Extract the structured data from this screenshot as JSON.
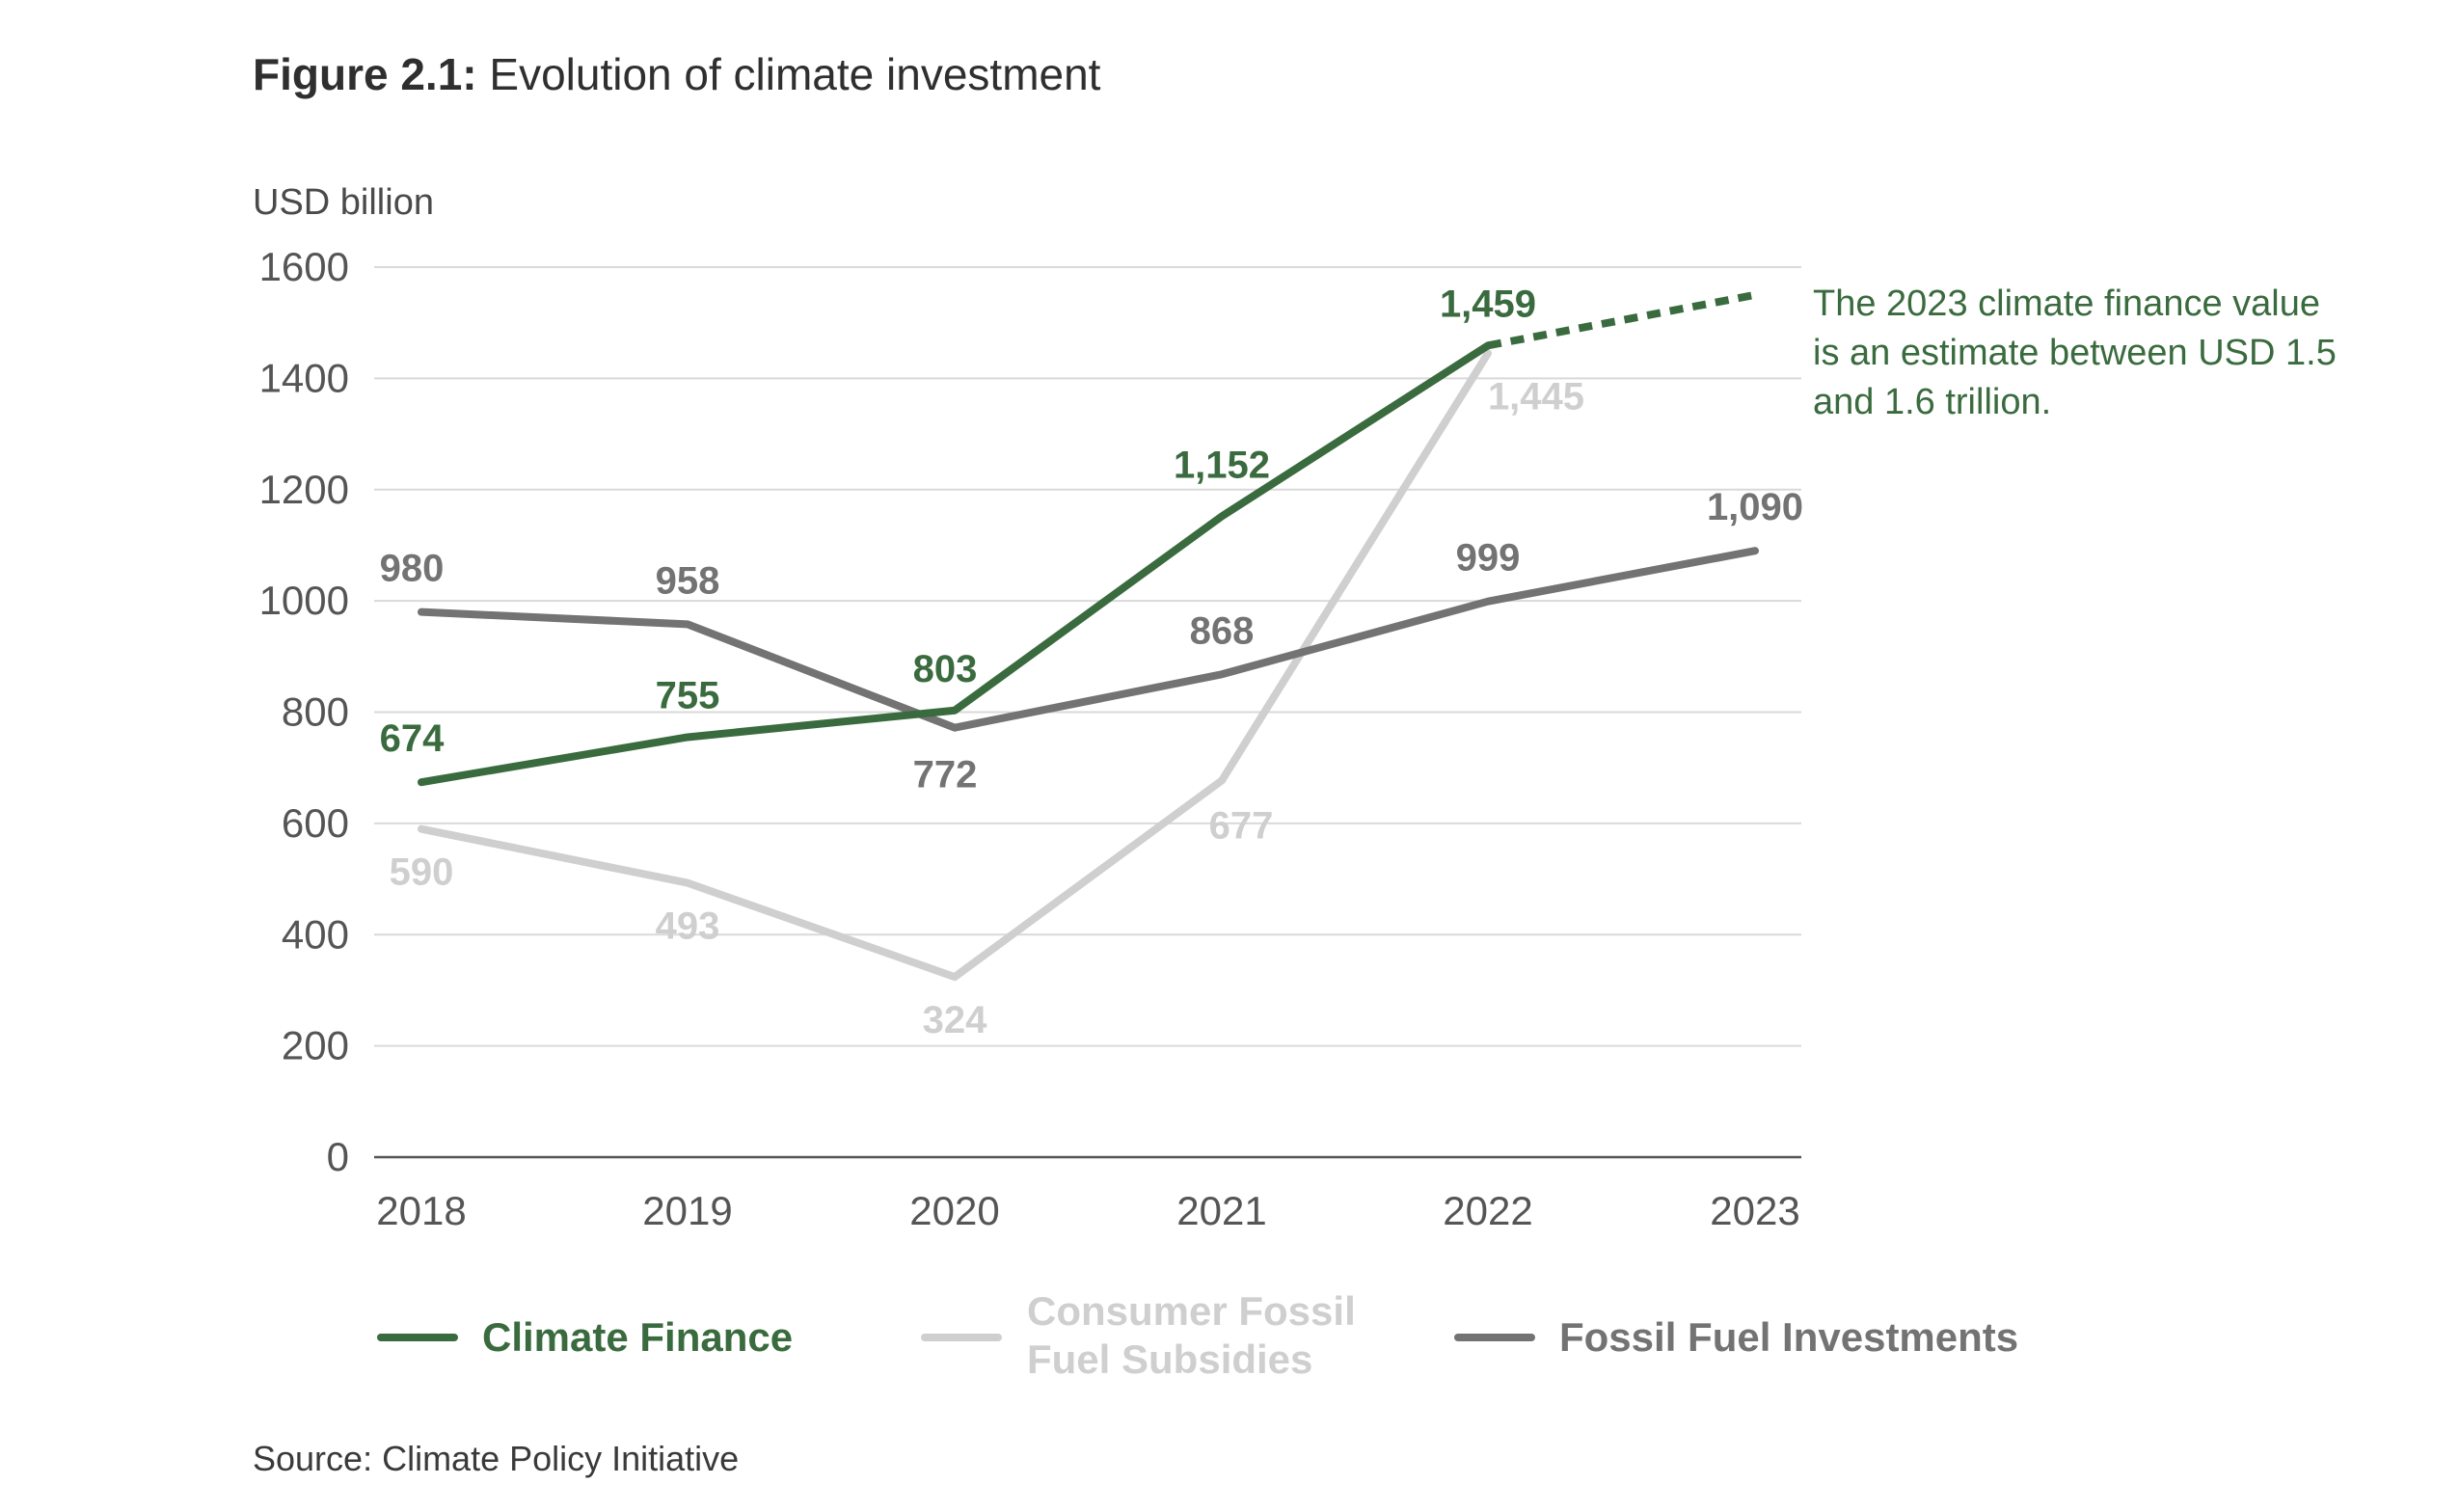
{
  "figure": {
    "label": "Figure 2.1:",
    "title": " Evolution of climate investment",
    "source": "Source: Climate Policy Initiative",
    "annotation": "The 2023 climate finance value is an estimate between USD 1.5 and 1.6 trillion."
  },
  "chart_data": {
    "type": "line",
    "title": "Evolution of climate investment",
    "ylabel": "USD billion",
    "xlabel": "",
    "x": [
      "2018",
      "2019",
      "2020",
      "2021",
      "2022",
      "2023"
    ],
    "ylim": [
      0,
      1600
    ],
    "yticks": [
      0,
      200,
      400,
      600,
      800,
      1000,
      1200,
      1400,
      1600
    ],
    "grid": true,
    "legend_position": "bottom",
    "series": [
      {
        "name": "Climate Finance",
        "color": "#3a6b3e",
        "values": [
          674,
          755,
          803,
          1152,
          1459,
          null
        ],
        "labels": [
          "674",
          "755",
          "803",
          "1,152",
          "1,459",
          ""
        ],
        "estimate": {
          "from": "2022",
          "to": "2023",
          "from_value": 1459,
          "to_value": 1550,
          "style": "dashed"
        }
      },
      {
        "name": "Consumer Fossil Fuel Subsidies",
        "legend_lines": [
          "Consumer Fossil",
          "Fuel Subsidies"
        ],
        "color": "#cfcfcf",
        "values": [
          590,
          493,
          324,
          677,
          1445,
          null
        ],
        "labels": [
          "590",
          "493",
          "324",
          "677",
          "1,445",
          ""
        ]
      },
      {
        "name": "Fossil Fuel Investments",
        "color": "#737373",
        "values": [
          980,
          958,
          772,
          868,
          999,
          1090
        ],
        "labels": [
          "980",
          "958",
          "772",
          "868",
          "999",
          "1,090"
        ]
      }
    ]
  }
}
